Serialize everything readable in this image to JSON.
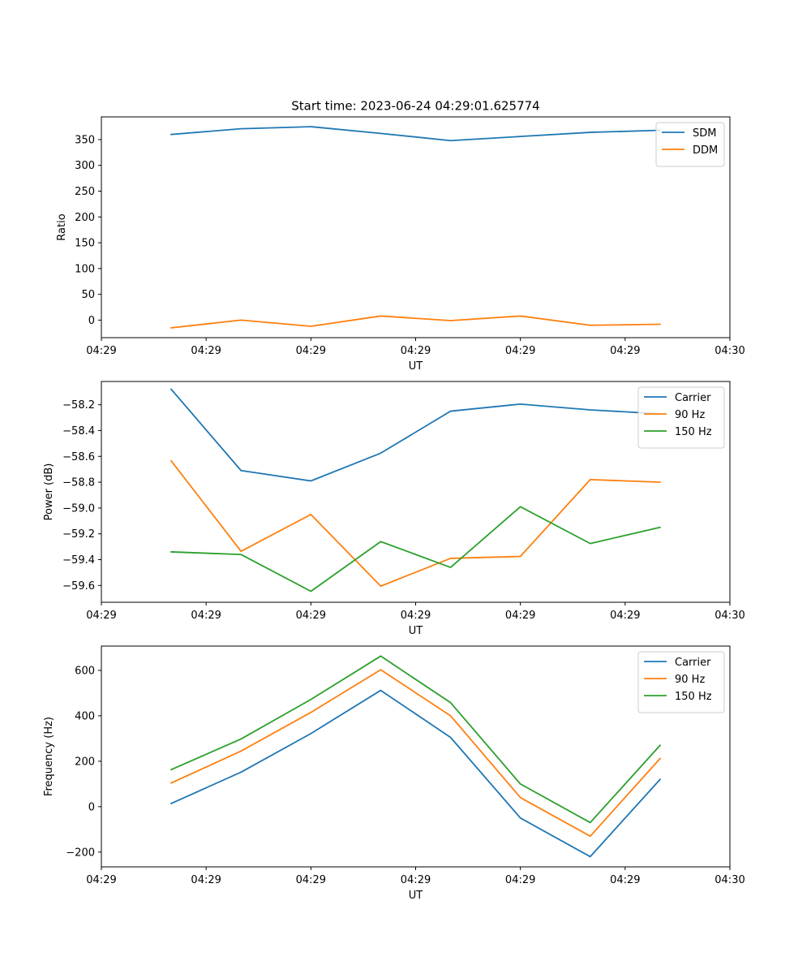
{
  "figure_title": "Start time: 2023-06-24 04:29:01.625774",
  "chart_data": [
    {
      "type": "line",
      "title": "Start time: 2023-06-24 04:29:01.625774",
      "xlabel": "UT",
      "ylabel": "Ratio",
      "x": [
        1,
        2,
        3,
        4,
        5,
        6,
        7,
        8
      ],
      "xlim": [
        0,
        9
      ],
      "xticks": [
        0.0,
        1.5,
        3.0,
        4.5,
        6.0,
        7.5,
        9.0
      ],
      "xtick_labels": [
        "04:29",
        "04:29",
        "04:29",
        "04:29",
        "04:29",
        "04:29",
        "04:30"
      ],
      "ylim": [
        -34,
        394
      ],
      "yticks": [
        0,
        50,
        100,
        150,
        200,
        250,
        300,
        350
      ],
      "ytick_labels": [
        "0",
        "50",
        "100",
        "150",
        "200",
        "250",
        "300",
        "350"
      ],
      "legend": "top-right",
      "grid": false,
      "series": [
        {
          "name": "SDM",
          "color": "#1f77b4",
          "values": [
            360,
            371,
            375,
            362,
            348,
            356,
            364,
            368
          ]
        },
        {
          "name": "DDM",
          "color": "#ff7f0e",
          "values": [
            -15,
            0,
            -12,
            8,
            -1,
            8,
            -10,
            -8
          ]
        }
      ]
    },
    {
      "type": "line",
      "xlabel": "UT",
      "ylabel": "Power (dB)",
      "x": [
        1,
        2,
        3,
        4,
        5,
        6,
        7,
        8
      ],
      "xlim": [
        0,
        9
      ],
      "xticks": [
        0.0,
        1.5,
        3.0,
        4.5,
        6.0,
        7.5,
        9.0
      ],
      "xtick_labels": [
        "04:29",
        "04:29",
        "04:29",
        "04:29",
        "04:29",
        "04:29",
        "04:30"
      ],
      "ylim": [
        -59.73,
        -58.02
      ],
      "yticks": [
        -59.6,
        -59.4,
        -59.2,
        -59.0,
        -58.8,
        -58.6,
        -58.4,
        -58.2
      ],
      "ytick_labels": [
        "−59.6",
        "−59.4",
        "−59.2",
        "−59.0",
        "−58.8",
        "−58.6",
        "−58.4",
        "−58.2"
      ],
      "legend": "top-right",
      "grid": false,
      "series": [
        {
          "name": "Carrier",
          "color": "#1f77b4",
          "values": [
            -58.08,
            -58.71,
            -58.79,
            -58.575,
            -58.25,
            -58.195,
            -58.24,
            -58.27
          ]
        },
        {
          "name": "90 Hz",
          "color": "#ff7f0e",
          "values": [
            -58.635,
            -59.335,
            -59.05,
            -59.605,
            -59.39,
            -59.375,
            -58.78,
            -58.8
          ]
        },
        {
          "name": "150 Hz",
          "color": "#2ca02c",
          "values": [
            -59.34,
            -59.36,
            -59.645,
            -59.26,
            -59.46,
            -58.99,
            -59.275,
            -59.15
          ]
        }
      ]
    },
    {
      "type": "line",
      "xlabel": "UT",
      "ylabel": "Frequency (Hz)",
      "x": [
        1,
        2,
        3,
        4,
        5,
        6,
        7,
        8
      ],
      "xlim": [
        0,
        9
      ],
      "xticks": [
        0.0,
        1.5,
        3.0,
        4.5,
        6.0,
        7.5,
        9.0
      ],
      "xtick_labels": [
        "04:29",
        "04:29",
        "04:29",
        "04:29",
        "04:29",
        "04:29",
        "04:30"
      ],
      "ylim": [
        -265,
        707
      ],
      "yticks": [
        -200,
        0,
        200,
        400,
        600
      ],
      "ytick_labels": [
        "−200",
        "0",
        "200",
        "400",
        "600"
      ],
      "legend": "top-right",
      "grid": false,
      "series": [
        {
          "name": "Carrier",
          "color": "#1f77b4",
          "values": [
            14,
            152,
            322,
            512,
            305,
            -50,
            -220,
            120
          ]
        },
        {
          "name": "90 Hz",
          "color": "#ff7f0e",
          "values": [
            104,
            245,
            415,
            603,
            400,
            40,
            -130,
            212
          ]
        },
        {
          "name": "150 Hz",
          "color": "#2ca02c",
          "values": [
            163,
            298,
            472,
            663,
            458,
            100,
            -70,
            270
          ]
        }
      ]
    }
  ]
}
